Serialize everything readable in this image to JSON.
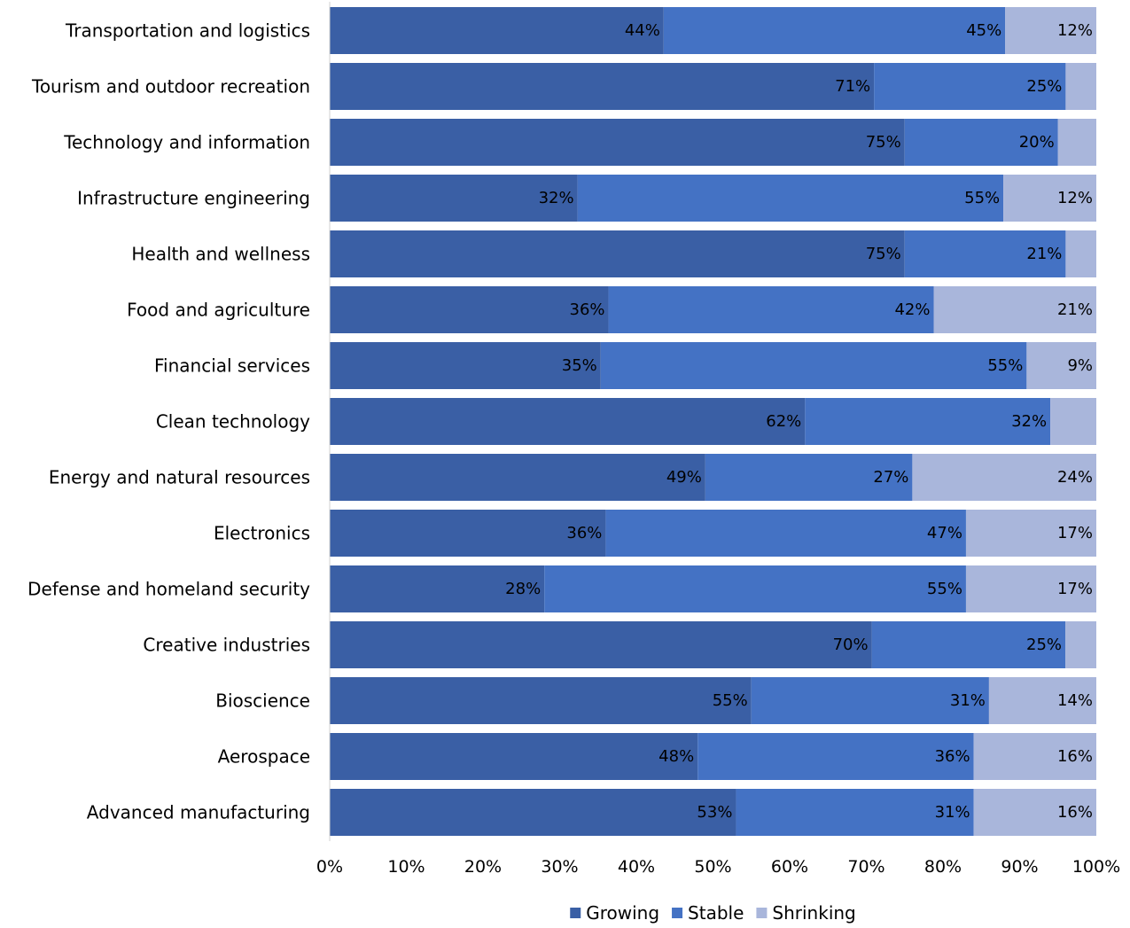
{
  "chart_data": {
    "type": "bar",
    "orientation": "horizontal",
    "stacked": "percent",
    "title": "",
    "xlabel": "",
    "ylabel": "",
    "xlim": [
      0,
      100
    ],
    "x_ticks": [
      "0%",
      "10%",
      "20%",
      "30%",
      "40%",
      "50%",
      "60%",
      "70%",
      "80%",
      "90%",
      "100%"
    ],
    "grid": false,
    "legend_position": "bottom",
    "categories": [
      "Transportation and logistics",
      "Tourism and outdoor recreation",
      "Technology and information",
      "Infrastructure engineering",
      "Health and wellness",
      "Food and agriculture",
      "Financial services",
      "Clean technology",
      "Energy and natural resources",
      "Electronics",
      "Defense and homeland security",
      "Creative industries",
      "Bioscience",
      "Aerospace",
      "Advanced manufacturing"
    ],
    "series": [
      {
        "name": "Growing",
        "color": "#3a5fa5",
        "values": [
          44,
          71,
          75,
          32,
          75,
          36,
          35,
          62,
          49,
          36,
          28,
          70,
          55,
          48,
          53
        ],
        "labels": [
          "44%",
          "71%",
          "75%",
          "32%",
          "75%",
          "36%",
          "35%",
          "62%",
          "49%",
          "36%",
          "28%",
          "70%",
          "55%",
          "48%",
          "53%"
        ]
      },
      {
        "name": "Stable",
        "color": "#4472c4",
        "values": [
          45,
          25,
          20,
          55,
          21,
          42,
          55,
          32,
          27,
          47,
          55,
          25,
          31,
          36,
          31
        ],
        "labels": [
          "45%",
          "25%",
          "20%",
          "55%",
          "21%",
          "42%",
          "55%",
          "32%",
          "27%",
          "47%",
          "55%",
          "25%",
          "31%",
          "36%",
          "31%"
        ]
      },
      {
        "name": "Shrinking",
        "color": "#a9b6db",
        "values": [
          12,
          4,
          5,
          12,
          4,
          21,
          9,
          6,
          24,
          17,
          17,
          4,
          14,
          16,
          16
        ],
        "labels": [
          "12%",
          "",
          "",
          "12%",
          "",
          "21%",
          "9%",
          "",
          "24%",
          "17%",
          "17%",
          "",
          "14%",
          "16%",
          "16%"
        ]
      }
    ]
  }
}
